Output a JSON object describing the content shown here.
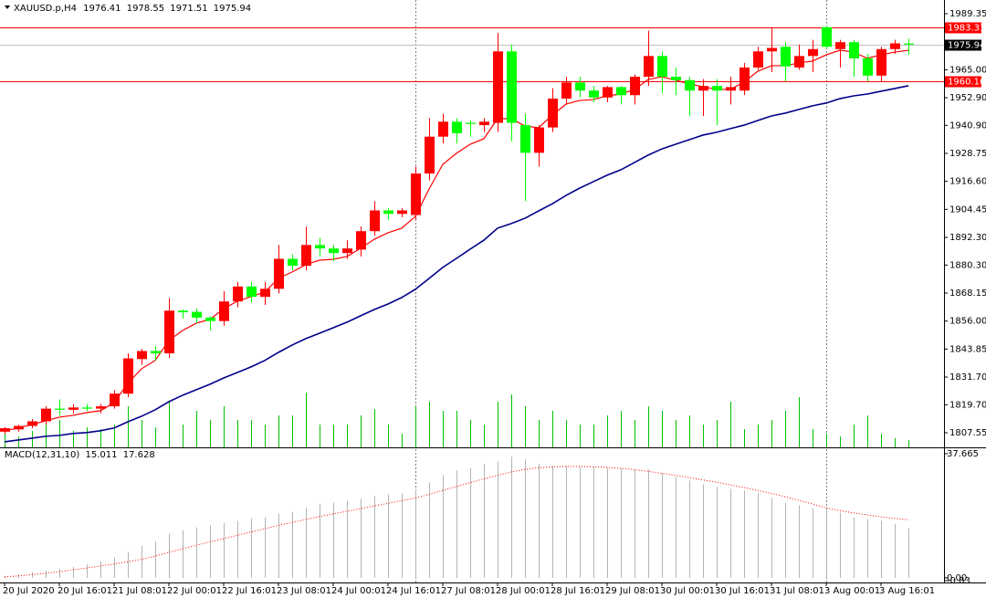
{
  "chart_data": {
    "type": "candlestick",
    "title": "XAUUSD.p,H4",
    "open": [
      1808,
      1809,
      1810.5,
      1812.5,
      1818,
      1817.5,
      1818.5,
      1818,
      1819,
      1824.5,
      1839.5,
      1843,
      1842,
      1860.5,
      1860,
      1857.5,
      1856,
      1864.5,
      1871,
      1866.5,
      1870,
      1883,
      1880,
      1889,
      1887.5,
      1885.5,
      1887,
      1895,
      1904,
      1902.5,
      1902,
      1920,
      1936,
      1942.5,
      1942,
      1941,
      1942,
      1973,
      1941,
      1929,
      1940,
      1952.5,
      1959.5,
      1956,
      1953,
      1957.5,
      1954,
      1962,
      1971,
      1962,
      1960.5,
      1956,
      1958,
      1956,
      1956,
      1966,
      1973,
      1975,
      1966,
      1971,
      1983.5,
      1974,
      1977,
      1970,
      1962.5,
      1974,
      1976.41
    ],
    "high": [
      1810,
      1811,
      1813.5,
      1819,
      1822,
      1820,
      1820,
      1820,
      1826,
      1842,
      1844,
      1845,
      1866,
      1861,
      1861.5,
      1858,
      1869,
      1873,
      1873,
      1873,
      1889,
      1885,
      1897,
      1892,
      1889,
      1891,
      1897,
      1908,
      1905,
      1905,
      1923,
      1944,
      1946,
      1944,
      1943,
      1944,
      1981,
      1976,
      1946,
      1941,
      1957,
      1962,
      1962,
      1958,
      1958,
      1958,
      1963,
      1982,
      1973,
      1966,
      1962,
      1961,
      1961,
      1962,
      1968,
      1975,
      1983.5,
      1977,
      1976,
      1978,
      1984,
      1978,
      1978,
      1972,
      1975,
      1978,
      1978.55
    ],
    "low": [
      1807,
      1808,
      1809.5,
      1811,
      1815,
      1816,
      1817,
      1816,
      1818,
      1823,
      1837,
      1839,
      1840,
      1857,
      1855,
      1852,
      1854,
      1862,
      1864,
      1863,
      1868,
      1878,
      1878,
      1884,
      1882,
      1883,
      1884,
      1893,
      1900,
      1901,
      1900,
      1917,
      1933,
      1933,
      1936,
      1938,
      1938,
      1934,
      1908,
      1923,
      1938,
      1950,
      1953,
      1951,
      1951,
      1950,
      1950,
      1958,
      1955,
      1954,
      1945,
      1945,
      1941,
      1950,
      1954,
      1965,
      1964,
      1960,
      1965,
      1964,
      1974,
      1966,
      1962,
      1960,
      1960,
      1972,
      1971.51
    ],
    "close": [
      1809.5,
      1810.5,
      1812.5,
      1818,
      1817.5,
      1818.5,
      1818,
      1819,
      1824.5,
      1839.8,
      1843,
      1842,
      1860.5,
      1859.8,
      1857.5,
      1856,
      1864.5,
      1871,
      1866.5,
      1870,
      1883,
      1880,
      1889,
      1887.5,
      1885.5,
      1887.5,
      1895,
      1904,
      1902.5,
      1904,
      1920,
      1936,
      1942.5,
      1937.5,
      1941.5,
      1942.5,
      1973,
      1942,
      1929,
      1940,
      1952.5,
      1959.5,
      1956,
      1953,
      1957.5,
      1954,
      1962,
      1971,
      1962,
      1960.5,
      1956,
      1958,
      1956,
      1957.5,
      1966,
      1973,
      1974.5,
      1966.5,
      1971,
      1974,
      1975,
      1977,
      1970,
      1962.5,
      1974,
      1976.5,
      1975.94
    ],
    "up_color": "#ff0000",
    "down_color": "#00ff00",
    "moving_averages": [
      {
        "color": "#ff0000",
        "values": [
          1808.4,
          1809.6,
          1811.1,
          1812.7,
          1814.3,
          1815.1,
          1816.3,
          1817.1,
          1820.6,
          1829,
          1835.3,
          1838.9,
          1847.6,
          1851.9,
          1855.1,
          1856.7,
          1861.4,
          1864.6,
          1866.6,
          1868.6,
          1874.5,
          1877.3,
          1880.5,
          1882.4,
          1882.8,
          1884,
          1887.6,
          1891.5,
          1894.3,
          1896.3,
          1901.4,
          1913.3,
          1924,
          1928.8,
          1932.7,
          1935.1,
          1943.8,
          1943.8,
          1940.6,
          1939.9,
          1945.4,
          1950.1,
          1951.7,
          1952.1,
          1953.7,
          1954.5,
          1956.5,
          1960.8,
          1962,
          1960.5,
          1958.9,
          1957.7,
          1956.5,
          1956.5,
          1959.7,
          1964.4,
          1966.8,
          1966.8,
          1968,
          1968.8,
          1971.5,
          1973.5,
          1972.7,
          1970,
          1971.5,
          1972.7,
          1973.5
        ]
      },
      {
        "color": "#00008b",
        "values": [
          1803.6,
          1804.4,
          1805.2,
          1806,
          1806.4,
          1807.2,
          1807.6,
          1808.4,
          1809.6,
          1812.3,
          1814.7,
          1817.5,
          1821,
          1823.8,
          1826.2,
          1828.6,
          1831.3,
          1833.7,
          1836.1,
          1838.9,
          1842.4,
          1845.6,
          1848.4,
          1850.7,
          1853.1,
          1855.5,
          1858.3,
          1861,
          1863.4,
          1866.2,
          1869.8,
          1874.5,
          1879.3,
          1883.2,
          1887.2,
          1891.1,
          1896.3,
          1898.3,
          1900.6,
          1903.8,
          1906.9,
          1910.5,
          1913.7,
          1916.5,
          1919.3,
          1921.6,
          1924.8,
          1928,
          1930.7,
          1932.7,
          1934.7,
          1936.7,
          1937.9,
          1939.5,
          1941,
          1943,
          1945,
          1946.2,
          1947.8,
          1949.4,
          1950.6,
          1952.5,
          1953.7,
          1954.5,
          1955.7,
          1956.9,
          1958.1
        ]
      }
    ],
    "volume": [
      15,
      12,
      18,
      28,
      30,
      18,
      22,
      20,
      25,
      45,
      30,
      22,
      50,
      25,
      40,
      30,
      45,
      30,
      30,
      25,
      35,
      35,
      60,
      25,
      25,
      25,
      35,
      42,
      25,
      15,
      45,
      50,
      40,
      40,
      30,
      25,
      50,
      58,
      45,
      30,
      40,
      30,
      25,
      25,
      35,
      40,
      30,
      45,
      40,
      30,
      35,
      25,
      30,
      50,
      20,
      25,
      30,
      40,
      55,
      20,
      15,
      12,
      25,
      35,
      15,
      10,
      8
    ],
    "volume_color": "#00c000",
    "ylim": [
      1801.2,
      1995.3
    ],
    "yticks": [
      1989.35,
      {
        "value": 1965,
        "label": "1965.00"
      },
      {
        "value": 1952.9,
        "label": "1952.90"
      },
      {
        "value": 1940.9,
        "label": "1940.90"
      },
      1928.75,
      {
        "value": 1916.6,
        "label": "1916.60"
      },
      1904.45,
      {
        "value": 1892.3,
        "label": "1892.30"
      },
      {
        "value": 1880.3,
        "label": "1880.30"
      },
      1868.15,
      {
        "value": 1856,
        "label": "1856.00"
      },
      1843.85,
      {
        "value": 1831.7,
        "label": "1831.70"
      },
      {
        "value": 1819.7,
        "label": "1819.70"
      },
      1807.55
    ],
    "levels": [
      1983.31,
      1960.16
    ],
    "level_color": "#ff0000",
    "xticks": [
      {
        "value": 0,
        "label": "20 Jul 2020"
      },
      {
        "value": 4,
        "label": "20 Jul 16:01"
      },
      {
        "value": 8,
        "label": "21 Jul 08:01"
      },
      {
        "value": 12,
        "label": "22 Jul 00:01"
      },
      {
        "value": 16,
        "label": "22 Jul 16:01"
      },
      {
        "value": 20,
        "label": "23 Jul 08:01"
      },
      {
        "value": 24,
        "label": "24 Jul 00:01"
      },
      {
        "value": 28,
        "label": "24 Jul 16:01"
      },
      {
        "value": 32,
        "label": "27 Jul 08:01"
      },
      {
        "value": 36,
        "label": "28 Jul 00:01"
      },
      {
        "value": 40,
        "label": "28 Jul 16:01"
      },
      {
        "value": 44,
        "label": "29 Jul 08:01"
      },
      {
        "value": 48,
        "label": "30 Jul 00:01"
      },
      {
        "value": 52,
        "label": "30 Jul 16:01"
      },
      {
        "value": 56,
        "label": "31 Jul 08:01"
      },
      {
        "value": 60,
        "label": "3 Aug 00:01"
      },
      {
        "value": 64,
        "label": "3 Aug 16:01"
      }
    ],
    "separators": [
      30,
      60
    ],
    "macd": {
      "title": "MACD(12,31,10)",
      "histogram": [
        0.56,
        1.11,
        1.67,
        2.23,
        2.78,
        3.34,
        4.18,
        5.01,
        6.13,
        7.8,
        9.75,
        11.14,
        13.37,
        14.48,
        15.32,
        15.87,
        16.71,
        17.27,
        18.1,
        18.38,
        19.49,
        20.05,
        21.17,
        22.28,
        22.84,
        23.39,
        23.95,
        24.79,
        25.34,
        25.62,
        27.02,
        28.96,
        31.19,
        32.59,
        33.42,
        34.53,
        35.37,
        36.76,
        35.93,
        34.53,
        33.98,
        33.98,
        33.7,
        33.7,
        33.42,
        33.14,
        32.86,
        32.86,
        31.75,
        30.64,
        29.52,
        28.41,
        27.57,
        27.02,
        26.46,
        25.62,
        24.23,
        22.84,
        22,
        21.17,
        20.61,
        19.77,
        18.38,
        17.82,
        17.27,
        16.43,
        15.011
      ],
      "signal": [
        0.3,
        0.6,
        1,
        1.4,
        1.9,
        2.4,
        3,
        3.6,
        4.2,
        4.9,
        5.6,
        6.6,
        7.7,
        8.8,
        9.9,
        10.9,
        11.9,
        12.9,
        13.9,
        14.9,
        15.9,
        16.8,
        17.7,
        18.6,
        19.4,
        20.2,
        21,
        21.8,
        22.6,
        23.4,
        24.2,
        25.3,
        26.5,
        27.7,
        28.9,
        30,
        31.1,
        32.1,
        32.9,
        33.4,
        33.7,
        33.8,
        33.8,
        33.7,
        33.5,
        33.2,
        32.8,
        32.3,
        31.7,
        31.1,
        30.4,
        29.7,
        29,
        28.2,
        27.4,
        26.5,
        25.6,
        24.6,
        23.5,
        22.4,
        21.2,
        20.4,
        19.7,
        19.1,
        18.5,
        18,
        17.628
      ],
      "histogram_color": "#b4b4b4",
      "signal_color": "#ff0000",
      "ylim": [
        -1.4,
        39.3
      ],
      "yticks": [
        37.665,
        -0.83,
        {
          "value": 0,
          "label": "0.00"
        }
      ]
    }
  }
}
